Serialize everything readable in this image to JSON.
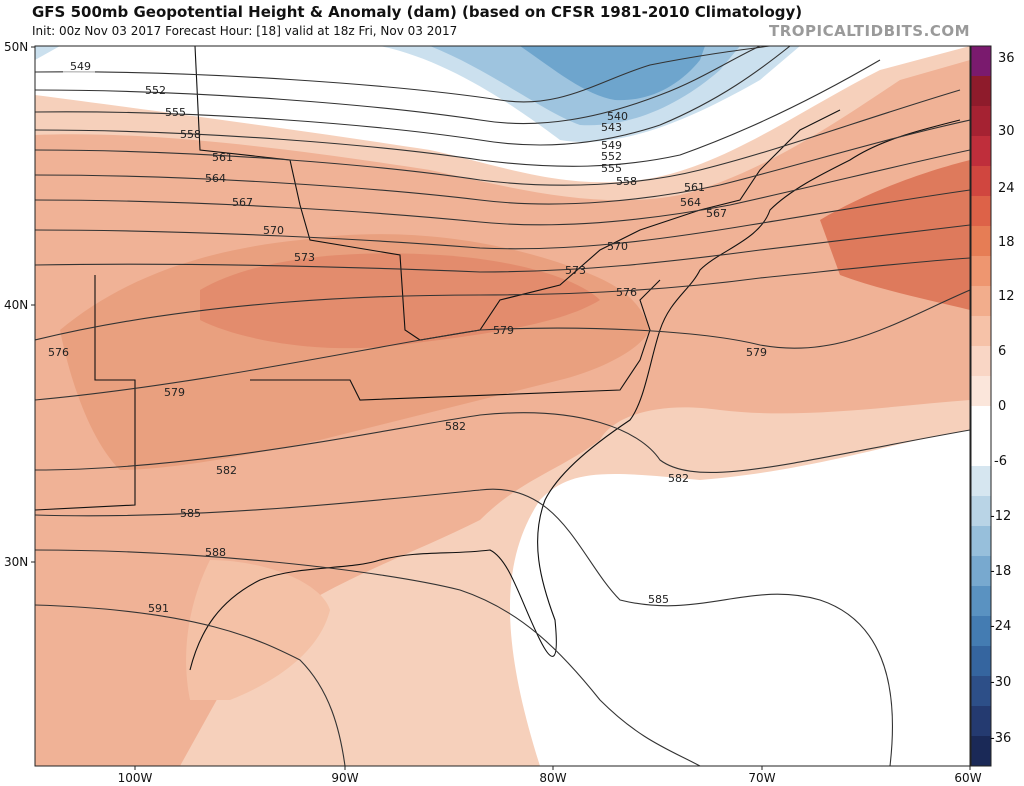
{
  "header": {
    "title": "GFS 500mb Geopotential Height & Anomaly (dam) (based on CFSR 1981-2010 Climatology)",
    "subtitle": "Init: 00z Nov 03 2017   Forecast Hour: [18]   valid at 18z Fri, Nov 03 2017",
    "credit": "TROPICALTIDBITS.COM"
  },
  "axes": {
    "lat_labels": [
      "50N",
      "40N",
      "30N"
    ],
    "lon_labels": [
      "100W",
      "90W",
      "80W",
      "70W",
      "60W"
    ]
  },
  "colorbar": {
    "labels": [
      "36",
      "30",
      "24",
      "18",
      "12",
      "6",
      "0",
      "-6",
      "-12",
      "-18",
      "-24",
      "-30",
      "-36"
    ],
    "colors": [
      "#7a1a6e",
      "#8e1b2b",
      "#a52232",
      "#bf2e3b",
      "#d0463f",
      "#dd6248",
      "#e67d55",
      "#ee9670",
      "#f2ad8c",
      "#f6c2a8",
      "#f9d6c5",
      "#fbe6db",
      "#ffffff",
      "#ffffff",
      "#d6e6f0",
      "#b9d4e6",
      "#97bfdb",
      "#78a9cf",
      "#5a92c1",
      "#447cb2",
      "#35659f",
      "#2d4f88",
      "#243a70",
      "#1a2957"
    ]
  },
  "contours": {
    "labels": [
      "549",
      "552",
      "555",
      "558",
      "561",
      "564",
      "567",
      "570",
      "573",
      "576",
      "579",
      "582",
      "585",
      "588",
      "591",
      "540",
      "543",
      "549",
      "552",
      "555",
      "558",
      "561",
      "564",
      "567",
      "570",
      "573",
      "576",
      "579",
      "579",
      "582",
      "582",
      "585"
    ]
  }
}
